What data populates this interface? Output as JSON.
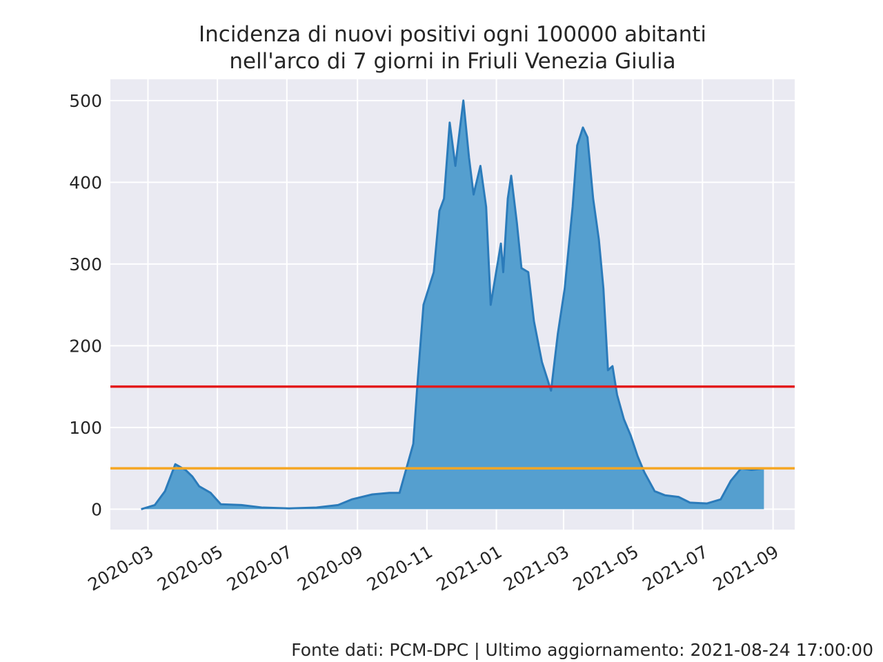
{
  "chart_data": {
    "type": "area",
    "title": [
      "Incidenza di nuovi positivi ogni 100000 abitanti",
      "nell'arco di 7 giorni in Friuli Venezia Giulia"
    ],
    "footer": "Fonte dati: PCM-DPC | Ultimo aggiornamento: 2021-08-24 17:00:00",
    "x": [
      "2020-02-24",
      "2020-03-07",
      "2020-03-16",
      "2020-03-25",
      "2020-04-03",
      "2020-04-09",
      "2020-04-15",
      "2020-04-25",
      "2020-05-04",
      "2020-05-22",
      "2020-06-09",
      "2020-07-03",
      "2020-07-27",
      "2020-08-15",
      "2020-08-27",
      "2020-09-14",
      "2020-09-29",
      "2020-10-08",
      "2020-10-20",
      "2020-10-24",
      "2020-10-29",
      "2020-11-07",
      "2020-11-12",
      "2020-11-16",
      "2020-11-21",
      "2020-11-26",
      "2020-12-03",
      "2020-12-08",
      "2020-12-12",
      "2020-12-18",
      "2020-12-23",
      "2020-12-27",
      "2021-01-02",
      "2021-01-05",
      "2021-01-07",
      "2021-01-11",
      "2021-01-14",
      "2021-01-19",
      "2021-01-23",
      "2021-01-29",
      "2021-02-03",
      "2021-02-10",
      "2021-02-18",
      "2021-02-24",
      "2021-03-02",
      "2021-03-09",
      "2021-03-13",
      "2021-03-18",
      "2021-03-22",
      "2021-03-27",
      "2021-04-01",
      "2021-04-05",
      "2021-04-09",
      "2021-04-13",
      "2021-04-17",
      "2021-04-23",
      "2021-04-29",
      "2021-05-05",
      "2021-05-11",
      "2021-05-20",
      "2021-05-29",
      "2021-06-10",
      "2021-06-20",
      "2021-07-05",
      "2021-07-17",
      "2021-07-26",
      "2021-08-04",
      "2021-08-13",
      "2021-08-24"
    ],
    "series": [
      {
        "name": "Incidenza",
        "color": "#2b7bba",
        "fill": "#559fcf",
        "values": [
          0,
          5,
          22,
          55,
          48,
          40,
          28,
          20,
          6,
          5,
          2,
          1,
          2,
          5,
          12,
          18,
          20,
          20,
          80,
          160,
          250,
          290,
          365,
          380,
          473,
          420,
          500,
          430,
          385,
          420,
          370,
          250,
          300,
          325,
          290,
          380,
          408,
          350,
          295,
          290,
          230,
          180,
          145,
          215,
          270,
          370,
          445,
          467,
          455,
          380,
          330,
          270,
          170,
          175,
          140,
          110,
          90,
          65,
          45,
          22,
          17,
          15,
          8,
          7,
          12,
          35,
          50,
          48,
          50
        ]
      }
    ],
    "hlines": [
      {
        "value": 150,
        "color": "#e31a1c"
      },
      {
        "value": 50,
        "color": "#f5a623"
      }
    ],
    "xlim": [
      "2020-01-28",
      "2021-09-20"
    ],
    "xticks": [
      "2020-03",
      "2020-05",
      "2020-07",
      "2020-09",
      "2020-11",
      "2021-01",
      "2021-03",
      "2021-05",
      "2021-07",
      "2021-09"
    ],
    "ylim": [
      -25,
      526
    ],
    "yticks": [
      0,
      100,
      200,
      300,
      400,
      500
    ],
    "grid": true
  }
}
